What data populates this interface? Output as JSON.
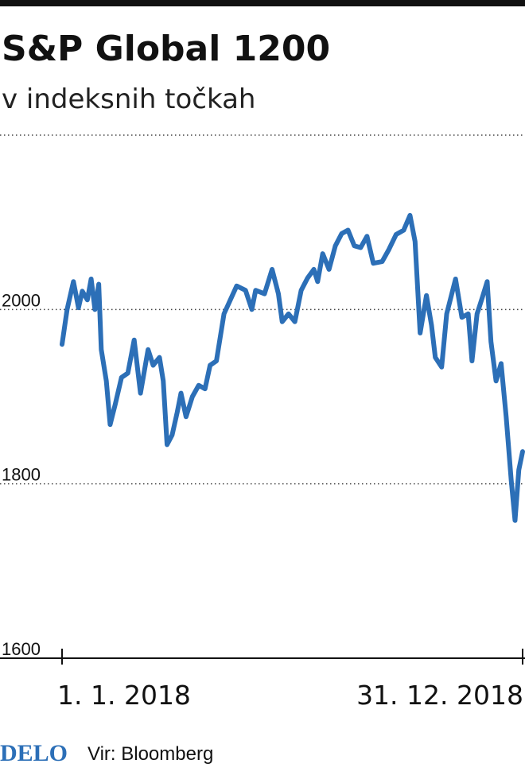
{
  "chart_data": {
    "type": "line",
    "title": "S&P Global 1200",
    "subtitle": "v indeksnih točkah",
    "x": [
      "2018-01-01",
      "2018-01-05",
      "2018-01-10",
      "2018-01-14",
      "2018-01-17",
      "2018-01-21",
      "2018-01-24",
      "2018-01-27",
      "2018-01-30",
      "2018-02-01",
      "2018-02-05",
      "2018-02-08",
      "2018-02-12",
      "2018-02-17",
      "2018-02-22",
      "2018-02-27",
      "2018-03-04",
      "2018-03-10",
      "2018-03-14",
      "2018-03-19",
      "2018-03-22",
      "2018-03-25",
      "2018-03-29",
      "2018-04-02",
      "2018-04-05",
      "2018-04-09",
      "2018-04-14",
      "2018-04-19",
      "2018-04-24",
      "2018-04-28",
      "2018-05-03",
      "2018-05-09",
      "2018-05-14",
      "2018-05-19",
      "2018-05-26",
      "2018-05-31",
      "2018-06-03",
      "2018-06-10",
      "2018-06-16",
      "2018-06-21",
      "2018-06-24",
      "2018-06-29",
      "2018-07-04",
      "2018-07-09",
      "2018-07-14",
      "2018-07-19",
      "2018-07-22",
      "2018-07-26",
      "2018-07-31",
      "2018-08-05",
      "2018-08-10",
      "2018-08-15",
      "2018-08-20",
      "2018-08-25",
      "2018-08-30",
      "2018-09-04",
      "2018-09-11",
      "2018-09-16",
      "2018-09-22",
      "2018-09-28",
      "2018-10-03",
      "2018-10-07",
      "2018-10-11",
      "2018-10-16",
      "2018-10-20",
      "2018-10-23",
      "2018-10-28",
      "2018-11-01",
      "2018-11-08",
      "2018-11-13",
      "2018-11-18",
      "2018-11-21",
      "2018-11-25",
      "2018-11-29",
      "2018-12-03",
      "2018-12-06",
      "2018-12-10",
      "2018-12-14",
      "2018-12-18",
      "2018-12-22",
      "2018-12-25",
      "2018-12-28",
      "2018-12-31"
    ],
    "series": [
      {
        "color": "#2c6fb7",
        "values": [
          1960,
          2000,
          2032,
          2002,
          2021,
          2011,
          2035,
          2000,
          2029,
          1954,
          1918,
          1868,
          1891,
          1922,
          1927,
          1965,
          1904,
          1954,
          1936,
          1945,
          1918,
          1845,
          1856,
          1882,
          1904,
          1877,
          1900,
          1913,
          1909,
          1936,
          1941,
          1995,
          2011,
          2027,
          2022,
          2000,
          2022,
          2018,
          2046,
          2018,
          1986,
          1995,
          1986,
          2022,
          2036,
          2046,
          2032,
          2064,
          2046,
          2073,
          2087,
          2091,
          2073,
          2071,
          2084,
          2053,
          2055,
          2068,
          2086,
          2091,
          2108,
          2078,
          1973,
          2016,
          1982,
          1945,
          1934,
          1995,
          2035,
          1991,
          1995,
          1941,
          1995,
          2013,
          2032,
          1963,
          1918,
          1938,
          1877,
          1804,
          1758,
          1816,
          1837
        ]
      }
    ],
    "xlim": [
      "2018-01-01",
      "2018-12-31"
    ],
    "xticks": [
      {
        "value": "2018-01-01",
        "label": "1. 1. 2018"
      },
      {
        "value": "2018-12-31",
        "label": "31. 12. 2018"
      }
    ],
    "ylim": [
      1600,
      2200
    ],
    "yticks": [
      1600,
      1800,
      2000
    ],
    "grid": true
  },
  "footer": {
    "logo": "DELO",
    "source": "Vir: Bloomberg"
  }
}
